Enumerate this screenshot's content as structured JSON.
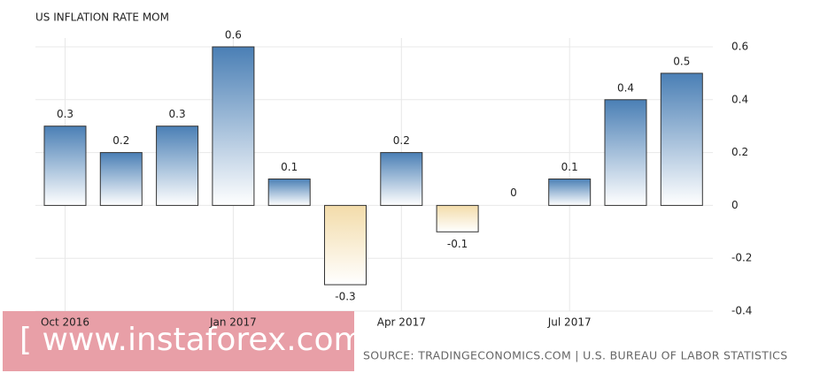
{
  "chart_data": {
    "type": "bar",
    "title": "US INFLATION RATE MOM",
    "categories": [
      "Oct 2016",
      null,
      null,
      "Jan 2017",
      null,
      null,
      "Apr 2017",
      null,
      null,
      "Jul 2017",
      null,
      null
    ],
    "values": [
      0.3,
      0.2,
      0.3,
      0.6,
      0.1,
      -0.3,
      0.2,
      -0.1,
      0,
      0.1,
      0.4,
      0.5
    ],
    "color": "#4a7fb5",
    "negative_color": "#f3dcaa",
    "ylim": [
      -0.4,
      0.6
    ],
    "yticks": [
      -0.4,
      -0.2,
      0,
      0.2,
      0.4,
      0.6
    ],
    "grid": true,
    "source": "SOURCE: TRADINGECONOMICS.COM | U.S. BUREAU OF LABOR STATISTICS",
    "watermark": "[ www.instaforex.com ]"
  }
}
